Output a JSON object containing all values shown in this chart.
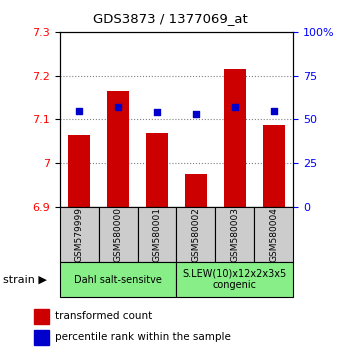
{
  "title": "GDS3873 / 1377069_at",
  "samples": [
    "GSM579999",
    "GSM580000",
    "GSM580001",
    "GSM580002",
    "GSM580003",
    "GSM580004"
  ],
  "transformed_counts": [
    7.065,
    7.165,
    7.068,
    6.975,
    7.215,
    7.087
  ],
  "percentile_ranks": [
    55,
    57,
    54,
    53,
    57,
    55
  ],
  "bar_bottom": 6.9,
  "ylim_left": [
    6.9,
    7.3
  ],
  "ylim_right": [
    0,
    100
  ],
  "yticks_left": [
    6.9,
    7.0,
    7.1,
    7.2,
    7.3
  ],
  "ytick_labels_left": [
    "6.9",
    "7",
    "7.1",
    "7.2",
    "7.3"
  ],
  "yticks_right": [
    0,
    25,
    50,
    75,
    100
  ],
  "ytick_labels_right": [
    "0",
    "25",
    "50",
    "75",
    "100%"
  ],
  "bar_color": "#cc0000",
  "scatter_color": "#0000cc",
  "group1_label": "Dahl salt-sensitve",
  "group2_label": "S.LEW(10)x12x2x3x5\ncongenic",
  "group1_indices": [
    0,
    1,
    2
  ],
  "group2_indices": [
    3,
    4,
    5
  ],
  "group_bg_color": "#88ee88",
  "sample_bg_color": "#cccccc",
  "legend_bar_label": "transformed count",
  "legend_scatter_label": "percentile rank within the sample",
  "strain_label": "strain",
  "grid_style": "dotted"
}
